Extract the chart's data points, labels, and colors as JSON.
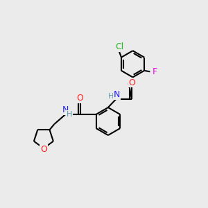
{
  "bg_color": "#ebebeb",
  "bond_color": "#000000",
  "bond_width": 1.5,
  "atom_colors": {
    "C": "#000000",
    "N": "#2020ff",
    "O": "#ff2020",
    "Cl": "#22bb22",
    "F": "#ee00ee",
    "H": "#5599aa"
  },
  "font_size": 8.5,
  "figsize": [
    3.0,
    3.0
  ],
  "dpi": 100
}
